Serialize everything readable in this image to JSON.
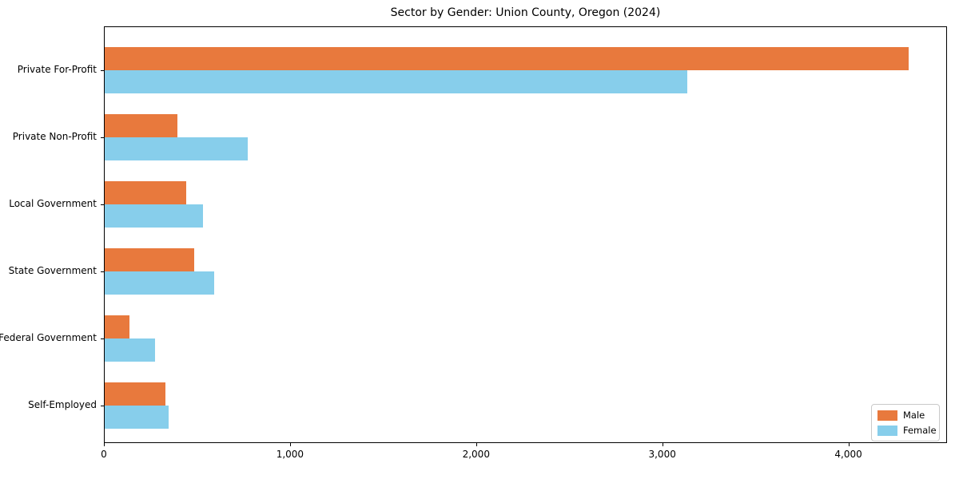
{
  "title": "Sector by Gender: Union County, Oregon (2024)",
  "colors": {
    "male": "#e8793d",
    "female": "#87ceeb",
    "axis": "#000000",
    "legend_border": "#c9c9c9",
    "background": "#ffffff"
  },
  "chart_data": {
    "type": "bar",
    "orientation": "horizontal",
    "title": "Sector by Gender: Union County, Oregon (2024)",
    "xlabel": "",
    "ylabel": "",
    "categories": [
      "Private For-Profit",
      "Private Non-Profit",
      "Local Government",
      "State Government",
      "Federal Government",
      "Self-Employed"
    ],
    "series": [
      {
        "name": "Male",
        "color": "#e8793d",
        "values": [
          4320,
          390,
          440,
          480,
          135,
          325
        ]
      },
      {
        "name": "Female",
        "color": "#87ceeb",
        "values": [
          3130,
          770,
          530,
          590,
          270,
          345
        ]
      }
    ],
    "xlim": [
      0,
      4530
    ],
    "xticks": [
      0,
      1000,
      2000,
      3000,
      4000
    ],
    "xtick_labels": [
      "0",
      "1,000",
      "2,000",
      "3,000",
      "4,000"
    ],
    "grid": false,
    "legend": {
      "position": "lower right",
      "entries": [
        "Male",
        "Female"
      ]
    }
  }
}
